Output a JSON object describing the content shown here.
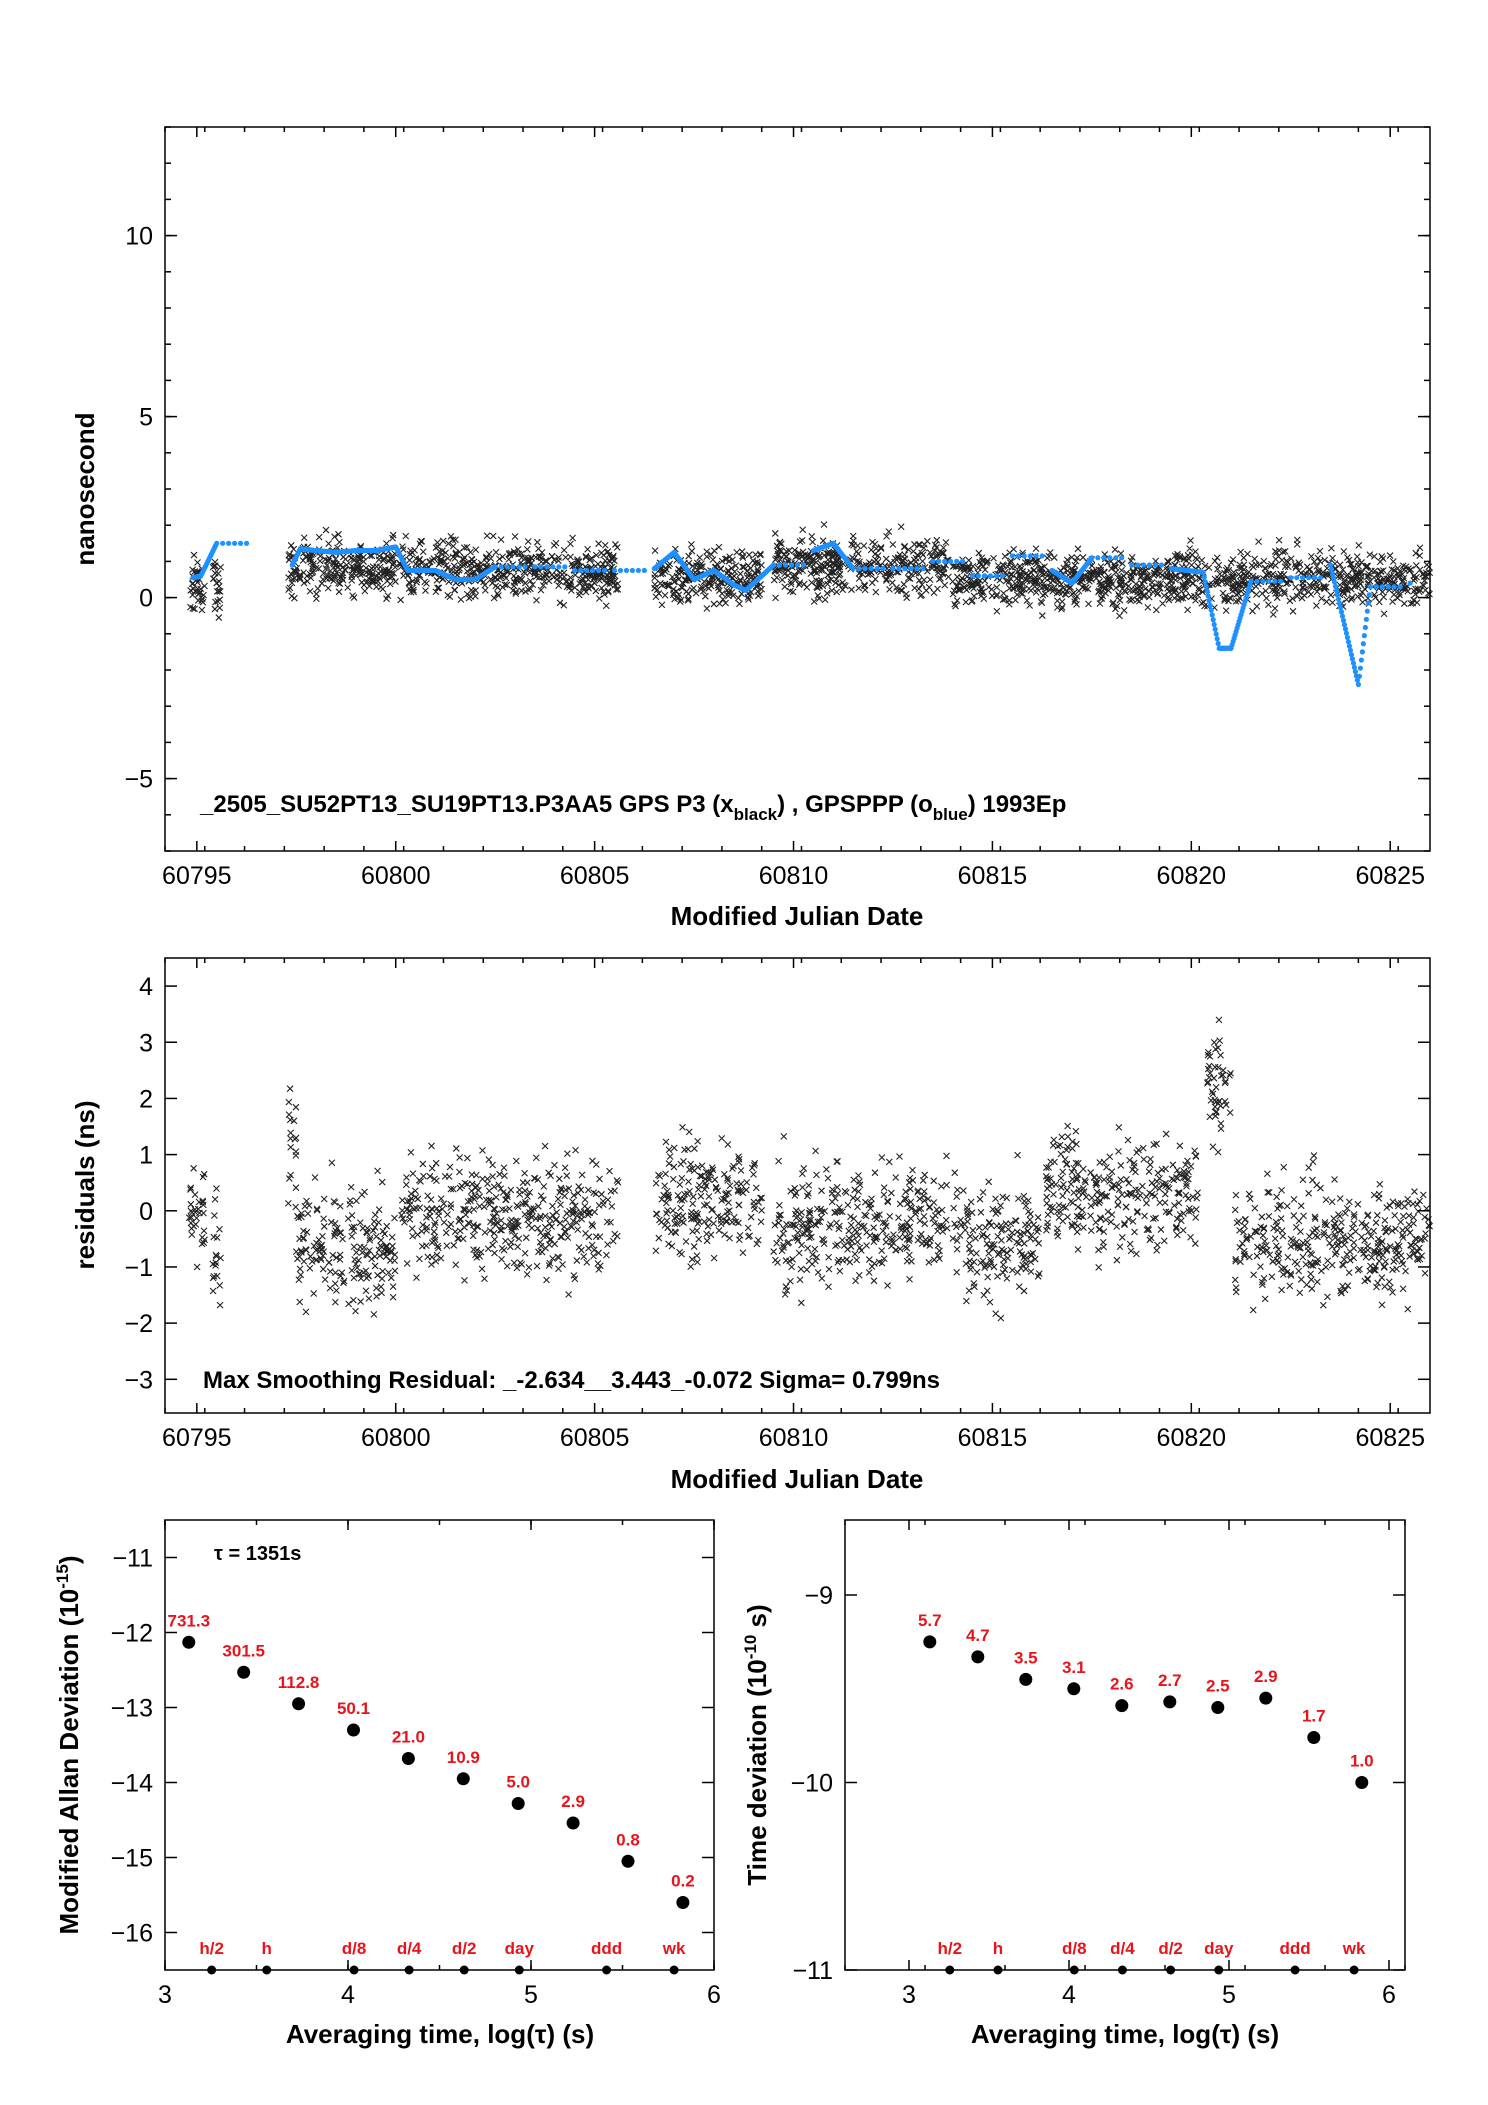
{
  "chart_data": [
    {
      "type": "scatter",
      "id": "time-series",
      "xlabel": "Modified Julian Date",
      "ylabel": "nanosecond",
      "xlim": [
        60794.2,
        60826
      ],
      "ylim": [
        -7,
        13
      ],
      "xticks": [
        60795,
        60800,
        60805,
        60810,
        60815,
        60820,
        60825
      ],
      "yticks": [
        -5,
        0,
        5,
        10
      ],
      "annotation_main": "_2505_SU52PT13_SU19PT13.P3AA5     GPS P3 (x",
      "annotation_sub1": "black",
      "annotation_mid": ") ,  GPSPPP (o",
      "annotation_sub2": "blue",
      "annotation_end": ")  1993Ep",
      "series": [
        {
          "name": "GPS P3",
          "marker": "x",
          "color": "#000000",
          "spread": 0.55,
          "segments": [
            [
              60794.8,
              60795.2,
              0.3
            ],
            [
              60795.4,
              60795.6,
              0.3
            ],
            [
              60797.3,
              60800.0,
              0.85
            ],
            [
              60800.1,
              60805.6,
              0.75
            ],
            [
              60806.5,
              60809.2,
              0.6
            ],
            [
              60809.5,
              60813.9,
              0.9
            ],
            [
              60814.0,
              60826.0,
              0.5
            ]
          ]
        },
        {
          "name": "GPSPPP",
          "marker": "o",
          "color": "#1e90ff",
          "points": [
            [
              60794.9,
              0.55
            ],
            [
              60795.1,
              0.6
            ],
            [
              60795.5,
              1.5
            ],
            [
              60797.4,
              0.9
            ],
            [
              60797.6,
              1.35
            ],
            [
              60798.0,
              1.3
            ],
            [
              60798.5,
              1.25
            ],
            [
              60799.0,
              1.3
            ],
            [
              60799.5,
              1.3
            ],
            [
              60800.0,
              1.4
            ],
            [
              60800.3,
              0.75
            ],
            [
              60801.0,
              0.75
            ],
            [
              60801.5,
              0.5
            ],
            [
              60802.0,
              0.5
            ],
            [
              60802.5,
              0.85
            ],
            [
              60803.5,
              0.85
            ],
            [
              60804.5,
              0.75
            ],
            [
              60805.5,
              0.75
            ],
            [
              60806.5,
              0.8
            ],
            [
              60807.0,
              1.25
            ],
            [
              60807.5,
              0.5
            ],
            [
              60808.0,
              0.75
            ],
            [
              60808.5,
              0.35
            ],
            [
              60808.8,
              0.2
            ],
            [
              60809.5,
              0.9
            ],
            [
              60810.5,
              1.3
            ],
            [
              60811.0,
              1.5
            ],
            [
              60811.5,
              0.8
            ],
            [
              60812.5,
              0.8
            ],
            [
              60813.5,
              1.0
            ],
            [
              60814.5,
              0.6
            ],
            [
              60815.5,
              1.15
            ],
            [
              60816.5,
              0.75
            ],
            [
              60817.0,
              0.4
            ],
            [
              60817.5,
              1.1
            ],
            [
              60818.5,
              0.9
            ],
            [
              60819.5,
              0.8
            ],
            [
              60820.3,
              0.7
            ],
            [
              60820.7,
              -1.4
            ],
            [
              60821.0,
              -1.4
            ],
            [
              60821.5,
              0.45
            ],
            [
              60822.5,
              0.55
            ],
            [
              60823.5,
              0.9
            ],
            [
              60824.2,
              -2.4
            ],
            [
              60824.5,
              0.3
            ],
            [
              60825.5,
              0.4
            ]
          ]
        }
      ]
    },
    {
      "type": "scatter",
      "id": "residuals",
      "xlabel": "Modified Julian Date",
      "ylabel": "residuals (ns)",
      "xlim": [
        60794.2,
        60826
      ],
      "ylim": [
        -3.6,
        4.5
      ],
      "xticks": [
        60795,
        60800,
        60805,
        60810,
        60815,
        60820,
        60825
      ],
      "yticks": [
        -3,
        -2,
        -1,
        0,
        1,
        2,
        3,
        4
      ],
      "annotation": "Max Smoothing Residual: _-2.634__3.443_-0.072  Sigma= 0.799ns",
      "series": [
        {
          "name": "residuals",
          "marker": "x",
          "color": "#000000",
          "spread": 0.75,
          "segments": [
            [
              60794.8,
              60795.2,
              0.0
            ],
            [
              60795.4,
              60795.6,
              -0.9
            ],
            [
              60797.3,
              60797.5,
              1.2
            ],
            [
              60797.5,
              60800.0,
              -0.7
            ],
            [
              60800.1,
              60802.5,
              0.0
            ],
            [
              60802.5,
              60805.6,
              -0.1
            ],
            [
              60806.5,
              60809.2,
              0.2
            ],
            [
              60809.5,
              60813.9,
              -0.2
            ],
            [
              60814.0,
              60816.2,
              -0.6
            ],
            [
              60816.3,
              60820.2,
              0.3
            ],
            [
              60820.4,
              60821.0,
              2.2
            ],
            [
              60821.1,
              60826.0,
              -0.5
            ]
          ]
        }
      ]
    },
    {
      "type": "scatter",
      "id": "mdev",
      "xlabel": "Averaging time, log(τ) (s)",
      "ylabel": "Modified Allan Deviation (10",
      "ylabel_sup": "-15",
      "ylabel_end": ")",
      "xlim": [
        3,
        6
      ],
      "ylim": [
        -16.5,
        -10.5
      ],
      "xticks": [
        3,
        4,
        5,
        6
      ],
      "yticks": [
        -16,
        -15,
        -14,
        -13,
        -12,
        -11
      ],
      "annotation": "τ = 1351s",
      "x": [
        3.13,
        3.43,
        3.73,
        4.03,
        4.33,
        4.63,
        4.93,
        5.23,
        5.53,
        5.83
      ],
      "y": [
        -12.13,
        -12.53,
        -12.95,
        -13.3,
        -13.68,
        -13.95,
        -14.28,
        -14.54,
        -15.05,
        -15.6
      ],
      "point_labels": [
        "731.3",
        "301.5",
        "112.8",
        "50.1",
        "21.0",
        "10.9",
        "5.0",
        "2.9",
        "0.8",
        "0.2"
      ],
      "tau_markers": [
        {
          "label": "h/2",
          "x": 3.255
        },
        {
          "label": "h",
          "x": 3.556
        },
        {
          "label": "d/8",
          "x": 4.033
        },
        {
          "label": "d/4",
          "x": 4.334
        },
        {
          "label": "d/2",
          "x": 4.635
        },
        {
          "label": "day",
          "x": 4.936
        },
        {
          "label": "ddd",
          "x": 5.413
        },
        {
          "label": "wk",
          "x": 5.782
        }
      ]
    },
    {
      "type": "scatter",
      "id": "tdev",
      "xlabel": "Averaging time, log(τ) (s)",
      "ylabel": "Time deviation (10",
      "ylabel_sup": "-10",
      "ylabel_end": " s)",
      "xlim": [
        2.6,
        6.1
      ],
      "ylim": [
        -11,
        -8.6
      ],
      "xticks": [
        3,
        4,
        5,
        6
      ],
      "yticks": [
        -11,
        -10,
        -9
      ],
      "x": [
        3.13,
        3.43,
        3.73,
        4.03,
        4.33,
        4.63,
        4.93,
        5.23,
        5.53,
        5.83
      ],
      "y": [
        -9.25,
        -9.33,
        -9.45,
        -9.5,
        -9.59,
        -9.57,
        -9.6,
        -9.55,
        -9.76,
        -10.0
      ],
      "point_labels": [
        "5.7",
        "4.7",
        "3.5",
        "3.1",
        "2.6",
        "2.7",
        "2.5",
        "2.9",
        "1.7",
        "1.0"
      ],
      "tau_markers": [
        {
          "label": "h/2",
          "x": 3.255
        },
        {
          "label": "h",
          "x": 3.556
        },
        {
          "label": "d/8",
          "x": 4.033
        },
        {
          "label": "d/4",
          "x": 4.334
        },
        {
          "label": "d/2",
          "x": 4.635
        },
        {
          "label": "day",
          "x": 4.936
        },
        {
          "label": "ddd",
          "x": 5.413
        },
        {
          "label": "wk",
          "x": 5.782
        }
      ]
    }
  ]
}
